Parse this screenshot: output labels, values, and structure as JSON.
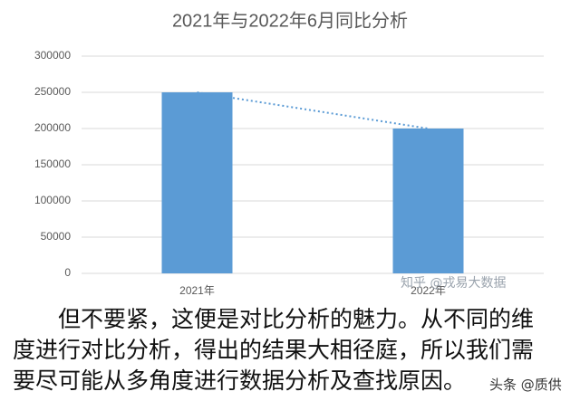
{
  "chart_data": {
    "type": "bar",
    "title": "2021年与2022年6月同比分析",
    "categories": [
      "2021年",
      "2022年"
    ],
    "values": [
      250000,
      200000
    ],
    "color": "#5b9bd5",
    "ylim": [
      0,
      300000
    ],
    "yticks": [
      0,
      50000,
      100000,
      150000,
      200000,
      250000,
      300000
    ],
    "grid": true,
    "trendline": true
  },
  "paragraph": "但不要紧，这便是对比分析的魅力。从不同的维度进行对比分析，得出的结果大相径庭，所以我们需要尽可能从多角度进行数据分析及查找原因。",
  "watermarks": [
    "知乎 @戎易大数据",
    "头条 @质供"
  ]
}
